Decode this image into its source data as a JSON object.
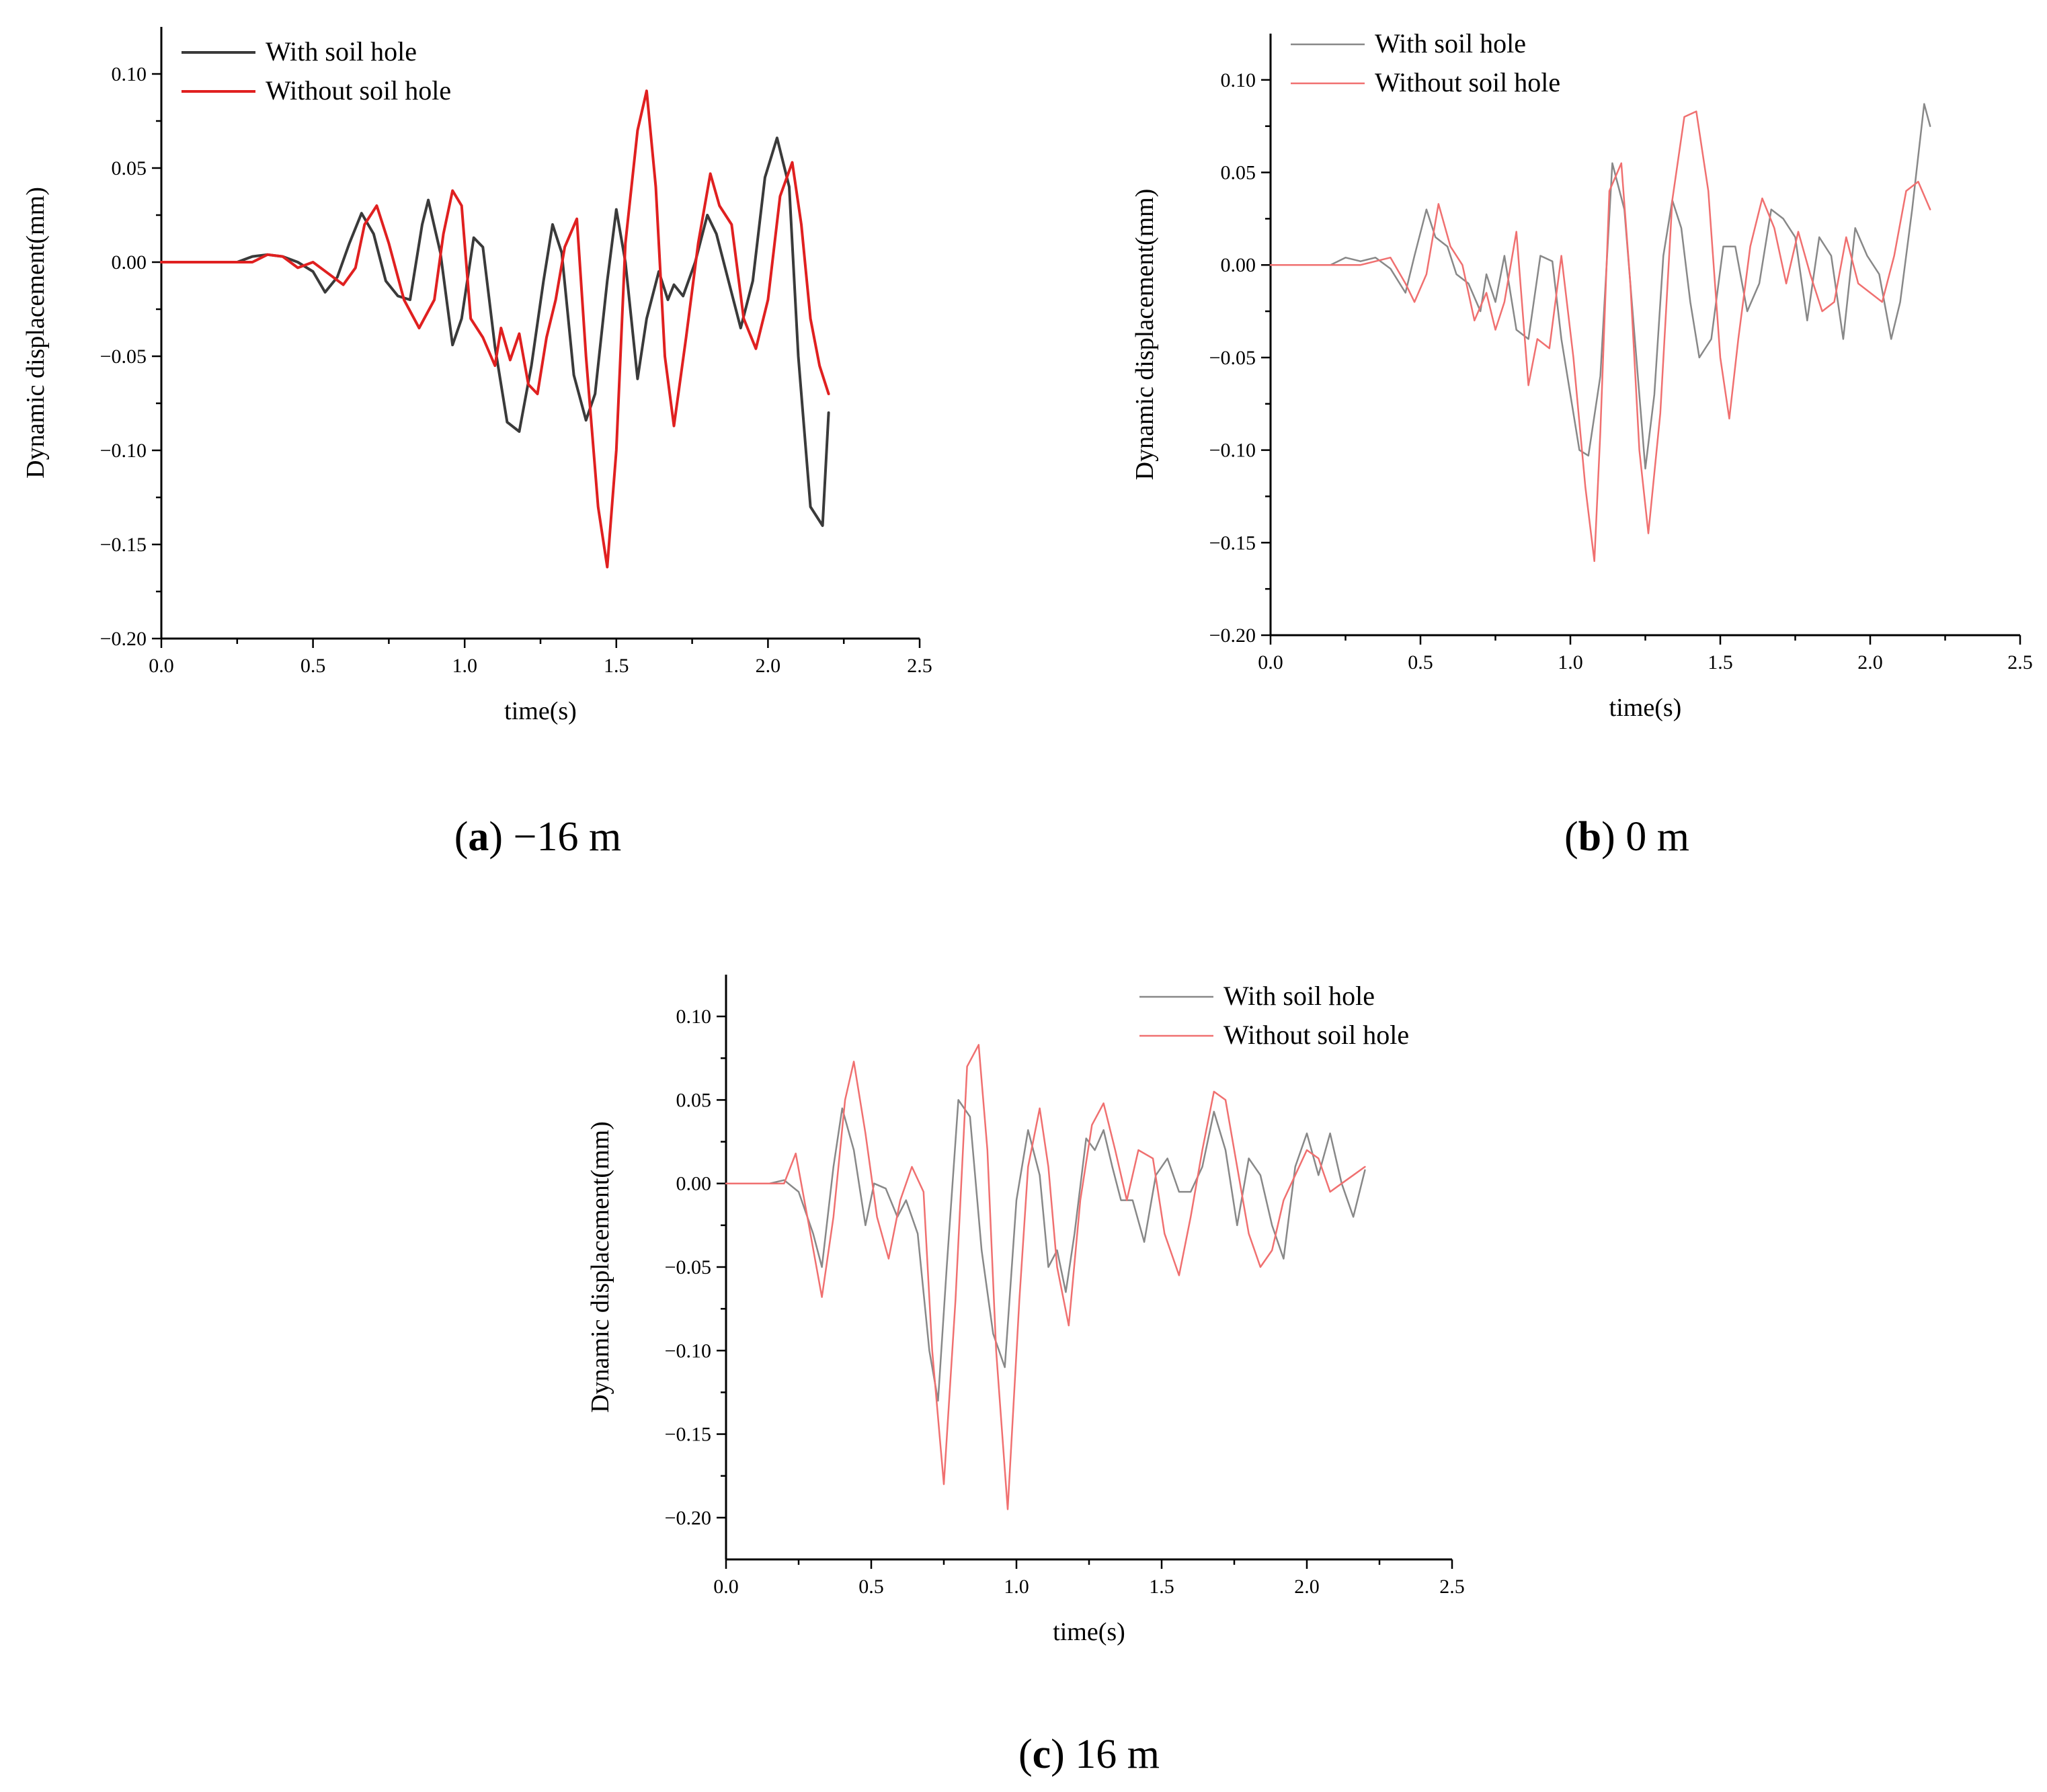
{
  "chart_data": [
    {
      "type": "line",
      "caption_letter": "a",
      "caption_text": " −16 m",
      "xlabel": "time(s)",
      "ylabel": "Dynamic displacement(mm)",
      "xlim": [
        0,
        2.5
      ],
      "ylim": [
        -0.2,
        0.125
      ],
      "xticks": [
        "0.0",
        "0.5",
        "1.0",
        "1.5",
        "2.0",
        "2.5"
      ],
      "yticks": [
        "−0.20",
        "−0.15",
        "−0.10",
        "−0.05",
        "0.00",
        "0.05",
        "0.10"
      ],
      "legend_position": "top-left",
      "series": [
        {
          "name": "With soil hole",
          "color": "#3a3a3a",
          "x": [
            0,
            0.25,
            0.3,
            0.35,
            0.4,
            0.45,
            0.5,
            0.54,
            0.58,
            0.62,
            0.66,
            0.7,
            0.74,
            0.78,
            0.82,
            0.86,
            0.88,
            0.92,
            0.96,
            0.99,
            1.03,
            1.06,
            1.1,
            1.14,
            1.18,
            1.22,
            1.26,
            1.29,
            1.32,
            1.36,
            1.4,
            1.43,
            1.47,
            1.5,
            1.53,
            1.57,
            1.6,
            1.64,
            1.67,
            1.69,
            1.72,
            1.76,
            1.8,
            1.83,
            1.87,
            1.91,
            1.95,
            1.99,
            2.03,
            2.07,
            2.1,
            2.14,
            2.18,
            2.2
          ],
          "y": [
            0,
            0,
            0.003,
            0.004,
            0.003,
            0,
            -0.005,
            -0.016,
            -0.008,
            0.01,
            0.026,
            0.015,
            -0.01,
            -0.018,
            -0.02,
            0.02,
            0.033,
            0.005,
            -0.044,
            -0.03,
            0.013,
            0.008,
            -0.045,
            -0.085,
            -0.09,
            -0.055,
            -0.01,
            0.02,
            0.005,
            -0.06,
            -0.084,
            -0.07,
            -0.01,
            0.028,
            0,
            -0.062,
            -0.03,
            -0.005,
            -0.02,
            -0.012,
            -0.018,
            0,
            0.025,
            0.015,
            -0.01,
            -0.035,
            -0.01,
            0.045,
            0.066,
            0.04,
            -0.05,
            -0.13,
            -0.14,
            -0.08
          ]
        },
        {
          "name": "Without soil hole",
          "color": "#e02020",
          "x": [
            0,
            0.3,
            0.35,
            0.4,
            0.45,
            0.5,
            0.55,
            0.6,
            0.64,
            0.67,
            0.71,
            0.75,
            0.8,
            0.85,
            0.9,
            0.93,
            0.96,
            0.99,
            1.02,
            1.06,
            1.1,
            1.12,
            1.15,
            1.18,
            1.21,
            1.24,
            1.27,
            1.3,
            1.33,
            1.37,
            1.4,
            1.44,
            1.47,
            1.5,
            1.53,
            1.57,
            1.6,
            1.63,
            1.66,
            1.69,
            1.73,
            1.77,
            1.81,
            1.84,
            1.88,
            1.92,
            1.96,
            2.0,
            2.04,
            2.08,
            2.11,
            2.14,
            2.17,
            2.2
          ],
          "y": [
            0,
            0,
            0.004,
            0.003,
            -0.003,
            0,
            -0.006,
            -0.012,
            -0.003,
            0.02,
            0.03,
            0.01,
            -0.02,
            -0.035,
            -0.02,
            0.015,
            0.038,
            0.03,
            -0.03,
            -0.04,
            -0.055,
            -0.035,
            -0.052,
            -0.038,
            -0.065,
            -0.07,
            -0.04,
            -0.02,
            0.008,
            0.023,
            -0.05,
            -0.13,
            -0.162,
            -0.1,
            0.01,
            0.07,
            0.091,
            0.04,
            -0.05,
            -0.087,
            -0.04,
            0.01,
            0.047,
            0.03,
            0.02,
            -0.03,
            -0.046,
            -0.02,
            0.035,
            0.053,
            0.02,
            -0.03,
            -0.055,
            -0.07
          ]
        }
      ]
    },
    {
      "type": "line",
      "caption_letter": "b",
      "caption_text": " 0 m",
      "xlabel": "time(s)",
      "ylabel": "Dynamic displacement(mm)",
      "xlim": [
        0,
        2.5
      ],
      "ylim": [
        -0.2,
        0.125
      ],
      "xticks": [
        "0.0",
        "0.5",
        "1.0",
        "1.5",
        "2.0",
        "2.5"
      ],
      "yticks": [
        "−0.20",
        "−0.15",
        "−0.10",
        "−0.05",
        "0.00",
        "0.05",
        "0.10"
      ],
      "legend_position": "top-left",
      "series": [
        {
          "name": "With soil hole",
          "color": "#888888",
          "x": [
            0,
            0.15,
            0.2,
            0.25,
            0.3,
            0.35,
            0.4,
            0.45,
            0.48,
            0.52,
            0.55,
            0.59,
            0.62,
            0.66,
            0.7,
            0.72,
            0.75,
            0.78,
            0.82,
            0.86,
            0.9,
            0.94,
            0.97,
            1.0,
            1.03,
            1.06,
            1.1,
            1.14,
            1.18,
            1.22,
            1.25,
            1.28,
            1.31,
            1.34,
            1.37,
            1.4,
            1.43,
            1.47,
            1.51,
            1.55,
            1.59,
            1.63,
            1.67,
            1.71,
            1.75,
            1.79,
            1.83,
            1.87,
            1.91,
            1.95,
            1.99,
            2.03,
            2.07,
            2.1,
            2.14,
            2.18,
            2.2
          ],
          "y": [
            0,
            0,
            0,
            0.004,
            0.002,
            0.004,
            -0.002,
            -0.015,
            0.005,
            0.03,
            0.015,
            0.01,
            -0.005,
            -0.01,
            -0.025,
            -0.005,
            -0.02,
            0.005,
            -0.035,
            -0.04,
            0.005,
            0.002,
            -0.04,
            -0.07,
            -0.1,
            -0.103,
            -0.06,
            0.055,
            0.03,
            -0.05,
            -0.11,
            -0.07,
            0.005,
            0.035,
            0.02,
            -0.02,
            -0.05,
            -0.04,
            0.01,
            0.01,
            -0.025,
            -0.01,
            0.03,
            0.025,
            0.015,
            -0.03,
            0.015,
            0.005,
            -0.04,
            0.02,
            0.005,
            -0.005,
            -0.04,
            -0.02,
            0.03,
            0.087,
            0.075
          ]
        },
        {
          "name": "Without soil hole",
          "color": "#f07070",
          "x": [
            0,
            0.3,
            0.35,
            0.4,
            0.45,
            0.48,
            0.52,
            0.56,
            0.6,
            0.64,
            0.68,
            0.72,
            0.75,
            0.78,
            0.82,
            0.86,
            0.89,
            0.93,
            0.97,
            1.01,
            1.05,
            1.08,
            1.1,
            1.13,
            1.17,
            1.2,
            1.23,
            1.26,
            1.3,
            1.34,
            1.38,
            1.42,
            1.46,
            1.5,
            1.53,
            1.56,
            1.6,
            1.64,
            1.68,
            1.72,
            1.76,
            1.8,
            1.84,
            1.88,
            1.92,
            1.96,
            2.0,
            2.04,
            2.08,
            2.12,
            2.16,
            2.2
          ],
          "y": [
            0,
            0,
            0.002,
            0.004,
            -0.01,
            -0.02,
            -0.005,
            0.033,
            0.01,
            0,
            -0.03,
            -0.015,
            -0.035,
            -0.02,
            0.018,
            -0.065,
            -0.04,
            -0.045,
            0.005,
            -0.05,
            -0.12,
            -0.16,
            -0.09,
            0.04,
            0.055,
            -0.01,
            -0.1,
            -0.145,
            -0.08,
            0.035,
            0.08,
            0.083,
            0.04,
            -0.05,
            -0.083,
            -0.04,
            0.01,
            0.036,
            0.02,
            -0.01,
            0.018,
            -0.005,
            -0.025,
            -0.02,
            0.015,
            -0.01,
            -0.015,
            -0.02,
            0.005,
            0.04,
            0.045,
            0.03
          ]
        }
      ]
    },
    {
      "type": "line",
      "caption_letter": "c",
      "caption_text": " 16 m",
      "xlabel": "time(s)",
      "ylabel": "Dynamic displacement(mm)",
      "xlim": [
        0,
        2.5
      ],
      "ylim": [
        -0.225,
        0.125
      ],
      "xticks": [
        "0.0",
        "0.5",
        "1.0",
        "1.5",
        "2.0",
        "2.5"
      ],
      "yticks": [
        "−0.20",
        "−0.15",
        "−0.10",
        "−0.05",
        "0.00",
        "0.05",
        "0.10"
      ],
      "legend_position": "top-right",
      "series": [
        {
          "name": "With soil hole",
          "color": "#888888",
          "x": [
            0,
            0.15,
            0.2,
            0.25,
            0.3,
            0.33,
            0.37,
            0.4,
            0.44,
            0.48,
            0.51,
            0.55,
            0.59,
            0.62,
            0.66,
            0.7,
            0.73,
            0.76,
            0.8,
            0.84,
            0.88,
            0.92,
            0.96,
            1.0,
            1.04,
            1.08,
            1.11,
            1.14,
            1.17,
            1.2,
            1.24,
            1.27,
            1.3,
            1.33,
            1.36,
            1.4,
            1.44,
            1.48,
            1.52,
            1.56,
            1.6,
            1.64,
            1.68,
            1.72,
            1.76,
            1.8,
            1.84,
            1.88,
            1.92,
            1.96,
            2.0,
            2.04,
            2.08,
            2.12,
            2.16,
            2.2
          ],
          "y": [
            0,
            0,
            0.002,
            -0.005,
            -0.03,
            -0.05,
            0.01,
            0.045,
            0.02,
            -0.025,
            0,
            -0.003,
            -0.02,
            -0.01,
            -0.03,
            -0.1,
            -0.13,
            -0.05,
            0.05,
            0.04,
            -0.04,
            -0.09,
            -0.11,
            -0.01,
            0.032,
            0.005,
            -0.05,
            -0.04,
            -0.065,
            -0.03,
            0.027,
            0.02,
            0.032,
            0.01,
            -0.01,
            -0.01,
            -0.035,
            0.005,
            0.015,
            -0.005,
            -0.005,
            0.01,
            0.043,
            0.02,
            -0.025,
            0.015,
            0.005,
            -0.025,
            -0.045,
            0.01,
            0.03,
            0.005,
            0.03,
            0,
            -0.02,
            0.008
          ]
        },
        {
          "name": "Without soil hole",
          "color": "#f07070",
          "x": [
            0,
            0.2,
            0.24,
            0.28,
            0.33,
            0.37,
            0.41,
            0.44,
            0.48,
            0.52,
            0.56,
            0.6,
            0.64,
            0.68,
            0.71,
            0.75,
            0.79,
            0.83,
            0.87,
            0.9,
            0.93,
            0.97,
            1.01,
            1.04,
            1.08,
            1.11,
            1.14,
            1.18,
            1.22,
            1.26,
            1.3,
            1.34,
            1.38,
            1.42,
            1.47,
            1.51,
            1.56,
            1.6,
            1.64,
            1.68,
            1.72,
            1.76,
            1.8,
            1.84,
            1.88,
            1.92,
            1.96,
            2.0,
            2.04,
            2.08,
            2.12,
            2.16,
            2.2
          ],
          "y": [
            0,
            0,
            0.018,
            -0.02,
            -0.068,
            -0.02,
            0.05,
            0.073,
            0.03,
            -0.02,
            -0.045,
            -0.01,
            0.01,
            -0.005,
            -0.1,
            -0.18,
            -0.07,
            0.07,
            0.083,
            0.02,
            -0.1,
            -0.195,
            -0.07,
            0.01,
            0.045,
            0.01,
            -0.05,
            -0.085,
            -0.01,
            0.035,
            0.048,
            0.02,
            -0.01,
            0.02,
            0.015,
            -0.03,
            -0.055,
            -0.02,
            0.02,
            0.055,
            0.05,
            0.01,
            -0.03,
            -0.05,
            -0.04,
            -0.01,
            0.005,
            0.02,
            0.015,
            -0.005,
            0,
            0.005,
            0.01
          ]
        }
      ]
    }
  ]
}
